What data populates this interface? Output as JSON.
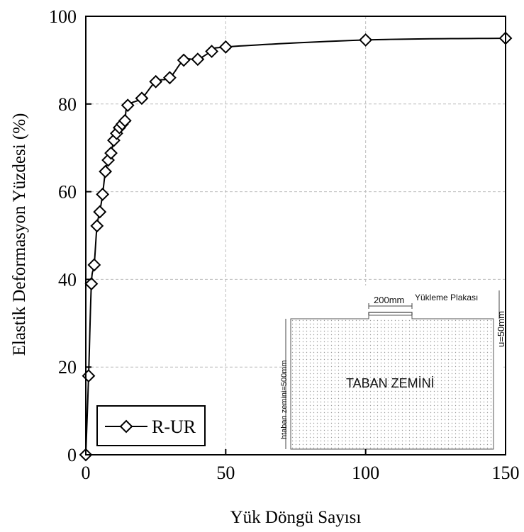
{
  "chart_data": {
    "type": "line",
    "title": "",
    "xlabel": "Yük Döngü Sayısı",
    "ylabel": "Elastik Deformasyon Yüzdesi (%)",
    "xlim": [
      0,
      150
    ],
    "ylim": [
      0,
      100
    ],
    "xticks": [
      "0",
      "50",
      "100",
      "150"
    ],
    "yticks": [
      "0",
      "20",
      "40",
      "60",
      "80",
      "100"
    ],
    "grid": true,
    "legend_position": "bottom-left",
    "series": [
      {
        "name": "R-UR",
        "color": "#000000",
        "marker": "diamond",
        "x": [
          0,
          1,
          2,
          3,
          4,
          5,
          6,
          7,
          8,
          9,
          10,
          11,
          12,
          13,
          14,
          15,
          20,
          25,
          30,
          35,
          40,
          45,
          50,
          100,
          150
        ],
        "y": [
          0,
          18,
          39,
          43.3,
          52.2,
          55.4,
          59.4,
          64.6,
          67.2,
          68.8,
          71.7,
          73.3,
          74.6,
          75.4,
          76.2,
          79.7,
          81.3,
          85.1,
          86,
          90,
          90.2,
          92,
          93,
          94.6,
          95
        ]
      }
    ]
  },
  "inset": {
    "plate_label": "Yükleme Plakası",
    "width_label": "200mm",
    "depth_label": "htaban zemini=500mm",
    "u_label": "u=50mm",
    "soil_label": "TABAN ZEMİNİ"
  }
}
